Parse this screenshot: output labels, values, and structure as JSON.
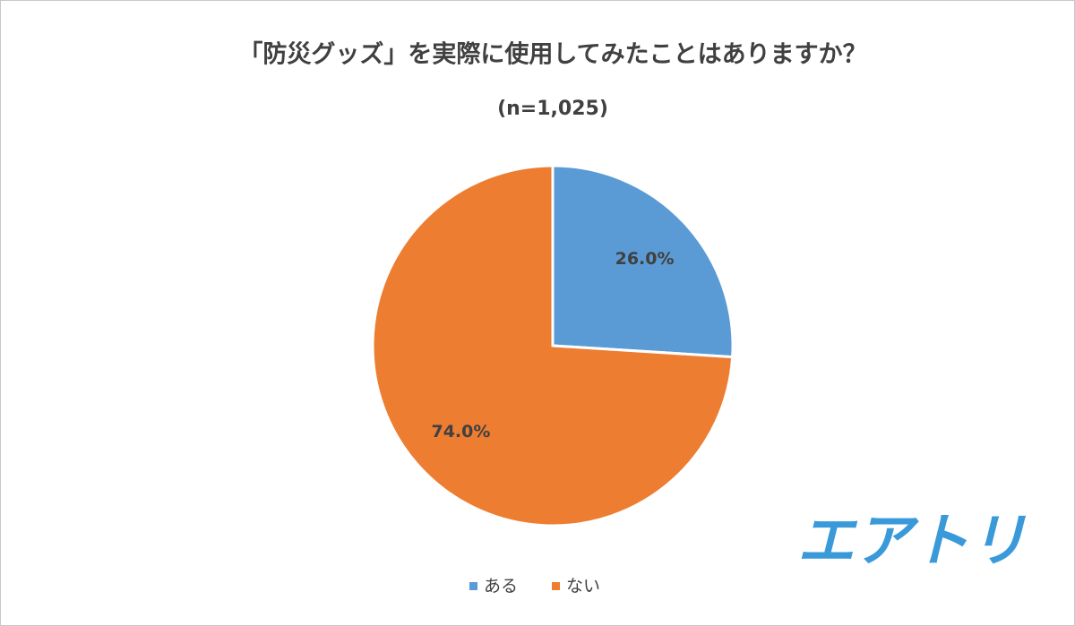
{
  "chart_data": {
    "type": "pie",
    "title": "「防災グッズ」を実際に使用してみたことはありますか？",
    "subtitle": "(n=1,025)",
    "categories": [
      "ある",
      "ない"
    ],
    "values": [
      26,
      74
    ],
    "value_labels": [
      "26.0%",
      "74.0%"
    ],
    "colors": [
      "#5b9bd5",
      "#ed7d31"
    ]
  },
  "logo": "エアトリ"
}
